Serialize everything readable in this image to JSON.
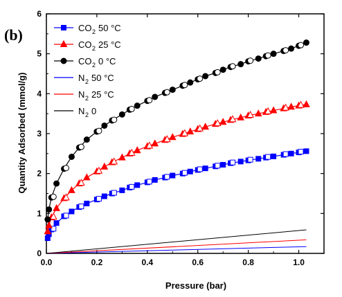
{
  "panel_label": "(b)",
  "chart_data": {
    "type": "line",
    "title": "",
    "xlabel": "Pressure (bar)",
    "ylabel": "Quantity Adsorbed (mmol/g)",
    "xlim": [
      0.0,
      1.1
    ],
    "ylim": [
      0,
      6
    ],
    "x_ticks": [
      "0.0",
      "0.2",
      "0.4",
      "0.6",
      "0.8",
      "1.0"
    ],
    "y_ticks": [
      "0",
      "1",
      "2",
      "3",
      "4",
      "5",
      "6"
    ],
    "legend_position": "top-left",
    "series": [
      {
        "name": "CO2 50 °C",
        "legend": {
          "gas": "CO",
          "sub": "2",
          "temp": "50 °C"
        },
        "color": "#0000ff",
        "marker": "square",
        "x": [
          0.005,
          0.01,
          0.02,
          0.04,
          0.07,
          0.1,
          0.13,
          0.16,
          0.2,
          0.23,
          0.26,
          0.3,
          0.33,
          0.36,
          0.4,
          0.43,
          0.47,
          0.5,
          0.54,
          0.57,
          0.6,
          0.63,
          0.67,
          0.7,
          0.73,
          0.77,
          0.8,
          0.84,
          0.87,
          0.9,
          0.94,
          0.97,
          1.0,
          1.03
        ],
        "y": [
          0.38,
          0.48,
          0.6,
          0.76,
          0.93,
          1.05,
          1.16,
          1.25,
          1.35,
          1.43,
          1.5,
          1.58,
          1.65,
          1.71,
          1.78,
          1.84,
          1.9,
          1.95,
          2.0,
          2.05,
          2.09,
          2.13,
          2.18,
          2.22,
          2.26,
          2.3,
          2.33,
          2.37,
          2.4,
          2.43,
          2.47,
          2.5,
          2.53,
          2.56
        ]
      },
      {
        "name": "CO2 25 °C",
        "legend": {
          "gas": "CO",
          "sub": "2",
          "temp": "25 °C"
        },
        "color": "#ff0000",
        "marker": "triangle",
        "x": [
          0.005,
          0.01,
          0.02,
          0.04,
          0.07,
          0.1,
          0.13,
          0.16,
          0.2,
          0.23,
          0.26,
          0.3,
          0.33,
          0.36,
          0.4,
          0.43,
          0.47,
          0.5,
          0.54,
          0.57,
          0.6,
          0.63,
          0.67,
          0.7,
          0.73,
          0.77,
          0.8,
          0.84,
          0.87,
          0.9,
          0.94,
          0.97,
          1.0,
          1.03
        ],
        "y": [
          0.55,
          0.7,
          0.9,
          1.13,
          1.38,
          1.58,
          1.75,
          1.9,
          2.05,
          2.17,
          2.28,
          2.4,
          2.5,
          2.58,
          2.68,
          2.75,
          2.84,
          2.91,
          2.99,
          3.05,
          3.11,
          3.17,
          3.24,
          3.29,
          3.34,
          3.4,
          3.45,
          3.5,
          3.54,
          3.58,
          3.63,
          3.67,
          3.7,
          3.73
        ]
      },
      {
        "name": "CO2 0 °C",
        "legend": {
          "gas": "CO",
          "sub": "2",
          "temp": "0   °C"
        },
        "color": "#000000",
        "marker": "circle",
        "x": [
          0.005,
          0.01,
          0.02,
          0.04,
          0.07,
          0.1,
          0.13,
          0.16,
          0.2,
          0.23,
          0.26,
          0.3,
          0.33,
          0.36,
          0.4,
          0.43,
          0.47,
          0.5,
          0.54,
          0.57,
          0.6,
          0.63,
          0.67,
          0.7,
          0.73,
          0.77,
          0.8,
          0.84,
          0.87,
          0.9,
          0.94,
          0.97,
          1.0,
          1.03
        ],
        "y": [
          0.85,
          1.1,
          1.4,
          1.75,
          2.12,
          2.42,
          2.65,
          2.85,
          3.05,
          3.2,
          3.33,
          3.48,
          3.6,
          3.7,
          3.82,
          3.92,
          4.02,
          4.1,
          4.2,
          4.28,
          4.36,
          4.44,
          4.52,
          4.6,
          4.67,
          4.74,
          4.81,
          4.88,
          4.94,
          5.0,
          5.07,
          5.13,
          5.2,
          5.28
        ]
      },
      {
        "name": "N2 50 °C",
        "legend": {
          "gas": "N",
          "sub": "2",
          "temp": "50 °C"
        },
        "color": "#0000ff",
        "marker": "none",
        "x": [
          0.0,
          1.03
        ],
        "y": [
          0.0,
          0.17
        ]
      },
      {
        "name": "N2 25 °C",
        "legend": {
          "gas": "N",
          "sub": "2",
          "temp": "25 °C"
        },
        "color": "#ff0000",
        "marker": "none",
        "x": [
          0.0,
          1.03
        ],
        "y": [
          0.0,
          0.34
        ]
      },
      {
        "name": "N2 0 °C",
        "legend": {
          "gas": "N",
          "sub": "2",
          "temp": "0"
        },
        "color": "#000000",
        "marker": "none",
        "x": [
          0.0,
          1.03
        ],
        "y": [
          0.0,
          0.59
        ]
      }
    ]
  }
}
